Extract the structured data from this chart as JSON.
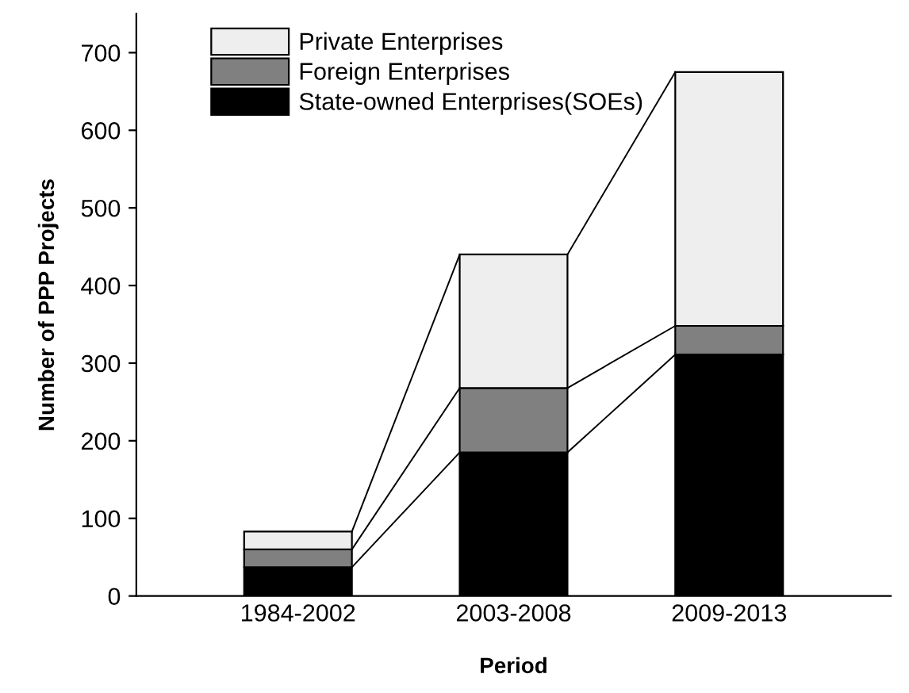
{
  "chart_data": {
    "type": "bar",
    "stacked": true,
    "xlabel": "Period",
    "ylabel": "Number of PPP Projects",
    "categories": [
      "1984-2002",
      "2003-2008",
      "2009-2013"
    ],
    "series": [
      {
        "name": "State-owned Enterprises(SOEs)",
        "color": "#000000",
        "values": [
          37,
          185,
          311
        ]
      },
      {
        "name": "Foreign Enterprises",
        "color": "#808080",
        "values": [
          23,
          83,
          37
        ]
      },
      {
        "name": "Private Enterprises",
        "color": "#eeeeee",
        "values": [
          23,
          172,
          327
        ]
      }
    ],
    "ylim": [
      0,
      750
    ],
    "yticks": [
      0,
      100,
      200,
      300,
      400,
      500,
      600,
      700
    ],
    "grid": false,
    "legend": "top left"
  }
}
